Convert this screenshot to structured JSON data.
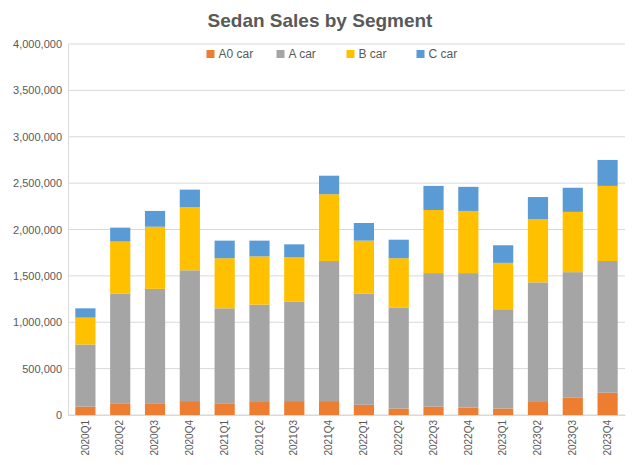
{
  "chart_data": {
    "type": "bar",
    "title": "Sedan Sales by Segment",
    "categories": [
      "2020Q1",
      "2020Q2",
      "2020Q3",
      "2020Q4",
      "2021Q1",
      "2021Q2",
      "2021Q3",
      "2021Q4",
      "2022Q1",
      "2022Q2",
      "2022Q3",
      "2022Q4",
      "2023Q1",
      "2023Q2",
      "2023Q3",
      "2023Q4"
    ],
    "series": [
      {
        "name": "A0 car",
        "color": "#ED7D31",
        "values": [
          90000,
          120000,
          120000,
          150000,
          120000,
          140000,
          150000,
          150000,
          110000,
          70000,
          90000,
          80000,
          70000,
          140000,
          190000,
          240000
        ]
      },
      {
        "name": "A car",
        "color": "#A5A5A5",
        "values": [
          670000,
          1190000,
          1240000,
          1410000,
          1030000,
          1050000,
          1070000,
          1510000,
          1200000,
          1090000,
          1440000,
          1450000,
          1070000,
          1290000,
          1350000,
          1420000
        ]
      },
      {
        "name": "B car",
        "color": "#FFC000",
        "values": [
          290000,
          560000,
          670000,
          680000,
          540000,
          520000,
          480000,
          720000,
          570000,
          530000,
          680000,
          670000,
          500000,
          680000,
          650000,
          810000
        ]
      },
      {
        "name": "C car",
        "color": "#5B9BD5",
        "values": [
          100000,
          150000,
          170000,
          190000,
          190000,
          170000,
          140000,
          200000,
          190000,
          200000,
          260000,
          260000,
          190000,
          240000,
          260000,
          280000
        ]
      }
    ],
    "ylim": [
      0,
      4000000
    ],
    "yticks": [
      0,
      {
        "value": 500000,
        "label": "500,000"
      },
      {
        "value": 1000000,
        "label": "1,000,000"
      },
      {
        "value": 1500000,
        "label": "1,500,000"
      },
      {
        "value": 2000000,
        "label": "2,000,000"
      },
      {
        "value": 2500000,
        "label": "2,500,000"
      },
      {
        "value": 3000000,
        "label": "3,000,000"
      },
      {
        "value": 3500000,
        "label": "3,500,000"
      },
      {
        "value": 4000000,
        "label": "4,000,000"
      }
    ],
    "grid": true,
    "stacked": true,
    "legend": "top"
  }
}
